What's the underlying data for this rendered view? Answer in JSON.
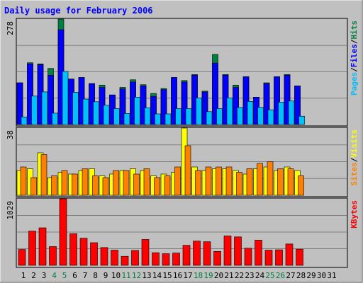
{
  "chart_data": [
    {
      "type": "bar",
      "title": "Daily usage for February 2006",
      "ymax_label": "278",
      "ylim": [
        0,
        278
      ],
      "grid": true,
      "categories": [
        "1",
        "2",
        "3",
        "4",
        "5",
        "6",
        "7",
        "8",
        "9",
        "10",
        "11",
        "12",
        "13",
        "14",
        "15",
        "16",
        "17",
        "18",
        "19",
        "20",
        "21",
        "22",
        "23",
        "24",
        "25",
        "26",
        "27",
        "28",
        "29",
        "30",
        "31"
      ],
      "weekend_days": [
        4,
        5,
        11,
        12,
        18,
        19,
        25,
        26
      ],
      "legend_vertical": [
        {
          "text": "Pages",
          "color": "#00c0ff"
        },
        {
          "text": "Files",
          "color": "#0000ff"
        },
        {
          "text": "Hits",
          "color": "#008040"
        }
      ],
      "series": [
        {
          "name": "Hits",
          "color": "#008040",
          "values": [
            110,
            163,
            160,
            148,
            278,
            120,
            124,
            108,
            104,
            78,
            98,
            118,
            105,
            82,
            95,
            124,
            116,
            132,
            88,
            185,
            132,
            104,
            126,
            72,
            110,
            126,
            132,
            102,
            0,
            0,
            0
          ]
        },
        {
          "name": "Files",
          "color": "#0000ff",
          "values": [
            110,
            160,
            158,
            130,
            250,
            120,
            124,
            108,
            98,
            78,
            94,
            112,
            102,
            74,
            92,
            124,
            112,
            130,
            86,
            162,
            130,
            98,
            126,
            72,
            108,
            126,
            130,
            102,
            0,
            0,
            0
          ]
        },
        {
          "name": "Pages",
          "color": "#00c0ff",
          "values": [
            20,
            75,
            86,
            30,
            140,
            85,
            67,
            60,
            51,
            42,
            29,
            72,
            44,
            28,
            28,
            42,
            42,
            70,
            34,
            42,
            70,
            45,
            61,
            45,
            39,
            59,
            62,
            22,
            0,
            0,
            0
          ]
        }
      ]
    },
    {
      "type": "bar",
      "ymax_label": "38",
      "ylim": [
        0,
        38
      ],
      "grid": true,
      "legend_vertical": [
        {
          "text": "Sites",
          "color": "#ff8000"
        },
        {
          "text": "Visits",
          "color": "#ffff00"
        }
      ],
      "series": [
        {
          "name": "Visits",
          "color": "#ffff00",
          "values": [
            14,
            15,
            24,
            10,
            13,
            12,
            14,
            15,
            11,
            12,
            14,
            15,
            14,
            11,
            12,
            13,
            38,
            16,
            14,
            15,
            15,
            14,
            12,
            15,
            16,
            14,
            16,
            14,
            0,
            0,
            0
          ]
        },
        {
          "name": "Sites",
          "color": "#ff8000",
          "values": [
            16,
            10,
            23,
            11,
            14,
            12,
            15,
            11,
            10,
            14,
            14,
            12,
            15,
            10,
            11,
            16,
            28,
            14,
            16,
            16,
            16,
            13,
            15,
            18,
            19,
            15,
            15,
            11,
            0,
            0,
            0
          ]
        }
      ]
    },
    {
      "type": "bar",
      "ymax_label": "1029",
      "ylim": [
        0,
        1029
      ],
      "grid": true,
      "legend_vertical": [
        {
          "text": "KBytes",
          "color": "#ff0000"
        }
      ],
      "series": [
        {
          "name": "KBytes",
          "color": "#ff0000",
          "values": [
            245,
            530,
            580,
            290,
            1029,
            490,
            420,
            350,
            275,
            235,
            140,
            230,
            400,
            195,
            180,
            190,
            310,
            375,
            365,
            215,
            455,
            440,
            265,
            390,
            235,
            240,
            330,
            250,
            0,
            0,
            0
          ]
        }
      ]
    }
  ]
}
